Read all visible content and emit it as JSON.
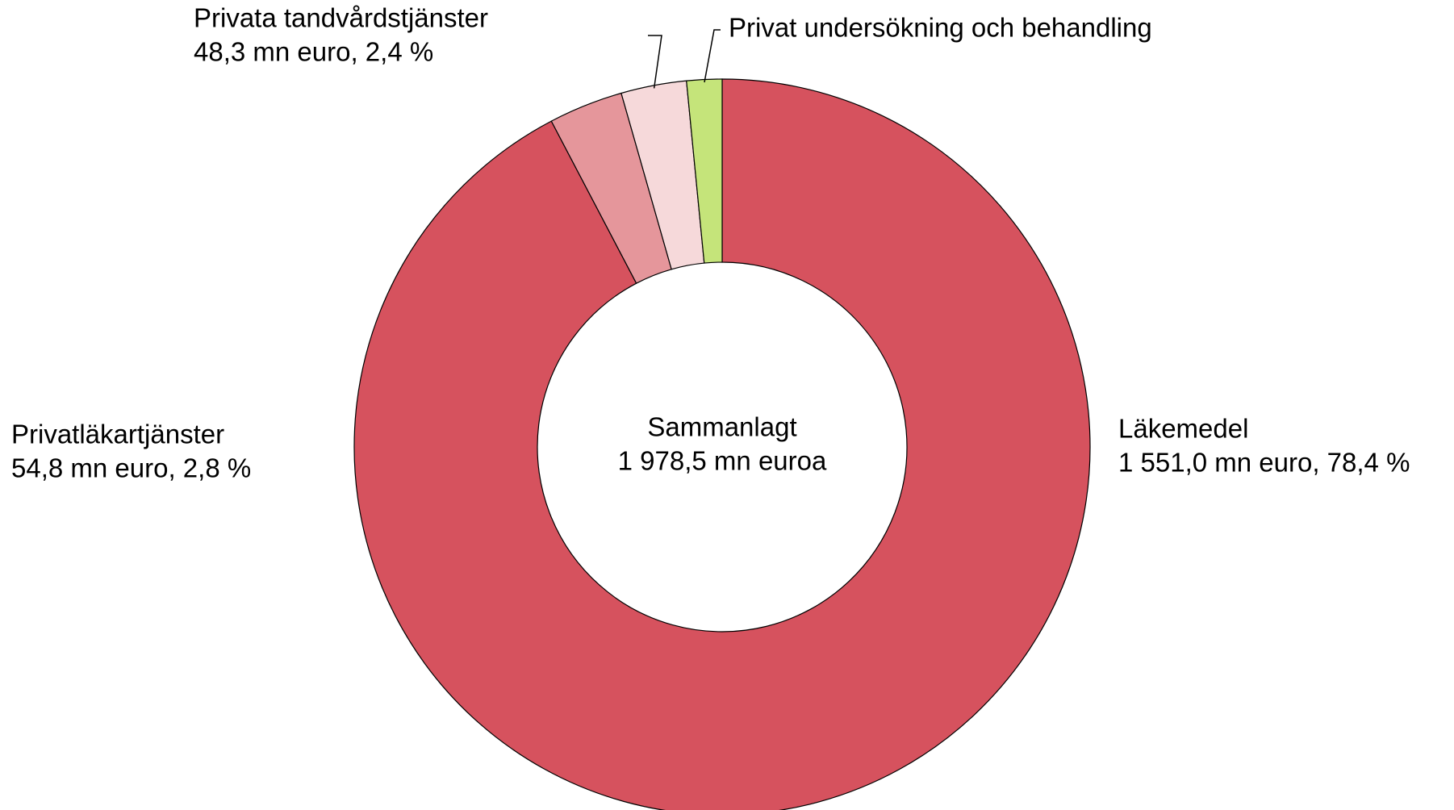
{
  "chart_data": {
    "type": "donut",
    "categories": [
      "Läkemedel",
      "Privatläkartjänster",
      "Privata tandvårdstjänster",
      "Privat undersökning och behandling"
    ],
    "values": [
      1551.0,
      54.8,
      48.3,
      26
    ],
    "value_labels": [
      "1 551,0 mn euro, 78,4 %",
      "54,8 mn euro, 2,8 %",
      "48,3 mn euro, 2,4 %",
      null
    ],
    "colors": [
      "#d6525e",
      "#e5969b",
      "#f6d9da",
      "#c5e47a"
    ],
    "center_text": [
      "Sammanlagt",
      "1 978,5 mn euroa"
    ]
  }
}
